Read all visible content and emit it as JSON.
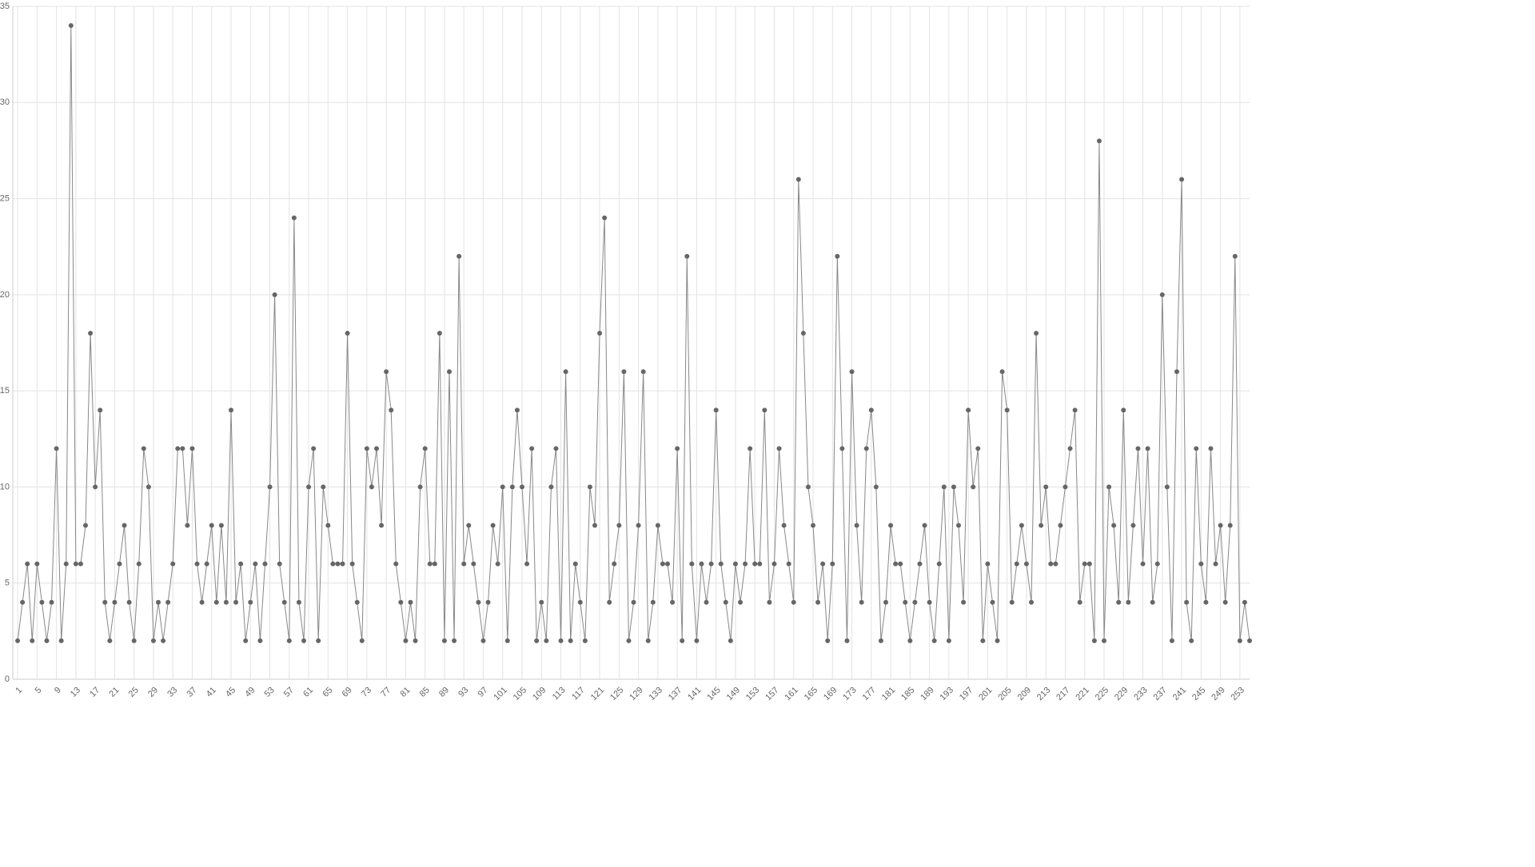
{
  "chart_data": {
    "type": "line",
    "x": [
      1,
      2,
      3,
      4,
      5,
      6,
      7,
      8,
      9,
      10,
      11,
      12,
      13,
      14,
      15,
      16,
      17,
      18,
      19,
      20,
      21,
      22,
      23,
      24,
      25,
      26,
      27,
      28,
      29,
      30,
      31,
      32,
      33,
      34,
      35,
      36,
      37,
      38,
      39,
      40,
      41,
      42,
      43,
      44,
      45,
      46,
      47,
      48,
      49,
      50,
      51,
      52,
      53,
      54,
      55,
      56,
      57,
      58,
      59,
      60,
      61,
      62,
      63,
      64,
      65,
      66,
      67,
      68,
      69,
      70,
      71,
      72,
      73,
      74,
      75,
      76,
      77,
      78,
      79,
      80,
      81,
      82,
      83,
      84,
      85,
      86,
      87,
      88,
      89,
      90,
      91,
      92,
      93,
      94,
      95,
      96,
      97,
      98,
      99,
      100,
      101,
      102,
      103,
      104,
      105,
      106,
      107,
      108,
      109,
      110,
      111,
      112,
      113,
      114,
      115,
      116,
      117,
      118,
      119,
      120,
      121,
      122,
      123,
      124,
      125,
      126,
      127,
      128,
      129,
      130,
      131,
      132,
      133,
      134,
      135,
      136,
      137,
      138,
      139,
      140,
      141,
      142,
      143,
      144,
      145,
      146,
      147,
      148,
      149,
      150,
      151,
      152,
      153,
      154,
      155,
      156,
      157,
      158,
      159,
      160,
      161,
      162,
      163,
      164,
      165,
      166,
      167,
      168,
      169,
      170,
      171,
      172,
      173,
      174,
      175,
      176,
      177,
      178,
      179,
      180,
      181,
      182,
      183,
      184,
      185,
      186,
      187,
      188,
      189,
      190,
      191,
      192,
      193,
      194,
      195,
      196,
      197,
      198,
      199,
      200,
      201,
      202,
      203,
      204,
      205,
      206,
      207,
      208,
      209,
      210,
      211,
      212,
      213,
      214,
      215,
      216,
      217,
      218,
      219,
      220,
      221,
      222,
      223,
      224,
      225,
      226,
      227,
      228,
      229,
      230,
      231,
      232,
      233,
      234,
      235,
      236,
      237,
      238,
      239,
      240,
      241,
      242,
      243,
      244,
      245,
      246,
      247,
      248,
      249,
      250,
      251,
      252,
      253,
      254,
      255
    ],
    "series": [
      {
        "color": "#666666",
        "values": [
          2,
          4,
          6,
          2,
          6,
          4,
          2,
          4,
          12,
          2,
          6,
          34,
          6,
          6,
          8,
          18,
          10,
          14,
          4,
          2,
          4,
          6,
          8,
          4,
          2,
          6,
          12,
          10,
          2,
          4,
          2,
          4,
          6,
          12,
          12,
          8,
          12,
          6,
          4,
          6,
          8,
          4,
          8,
          4,
          14,
          4,
          6,
          2,
          4,
          6,
          2,
          6,
          10,
          20,
          6,
          4,
          2,
          24,
          4,
          2,
          10,
          12,
          2,
          10,
          8,
          6,
          6,
          6,
          18,
          6,
          4,
          2,
          12,
          10,
          12,
          8,
          16,
          14,
          6,
          4,
          2,
          4,
          2,
          10,
          12,
          6,
          6,
          18,
          2,
          16,
          2,
          22,
          6,
          8,
          6,
          4,
          2,
          4,
          8,
          6,
          10,
          2,
          10,
          14,
          10,
          6,
          12,
          2,
          4,
          2,
          10,
          12,
          2,
          16,
          2,
          6,
          4,
          2,
          10,
          8,
          18,
          24,
          4,
          6,
          8,
          16,
          2,
          4,
          8,
          16,
          2,
          4,
          8,
          6,
          6,
          4,
          12,
          2,
          22,
          6,
          2,
          6,
          4,
          6,
          14,
          6,
          4,
          2,
          6,
          4,
          6,
          12,
          6,
          6,
          14,
          4,
          6,
          12,
          8,
          6,
          4,
          26,
          18,
          10,
          8,
          4,
          6,
          2,
          6,
          22,
          12,
          2,
          16,
          8,
          4,
          12,
          14,
          10,
          2,
          4,
          8,
          6,
          6,
          4,
          2,
          4,
          6,
          8,
          4,
          2,
          6,
          10,
          2,
          10,
          8,
          4,
          14,
          10,
          12,
          2,
          6,
          4,
          2,
          16,
          14,
          4,
          6,
          8,
          6,
          4,
          18,
          8,
          10,
          6,
          6,
          8,
          10,
          12,
          14,
          4,
          6,
          6,
          2,
          28,
          2,
          10,
          8,
          4,
          14,
          4,
          8,
          12,
          6,
          12,
          4,
          6,
          20,
          10,
          2,
          16,
          26,
          4,
          2,
          12,
          6,
          4,
          12,
          6,
          8,
          4,
          8,
          22,
          2,
          4,
          2
        ]
      }
    ],
    "xlim": [
      0,
      255
    ],
    "xticks": [
      1,
      5,
      9,
      13,
      17,
      21,
      25,
      29,
      33,
      37,
      41,
      45,
      49,
      53,
      57,
      61,
      65,
      69,
      73,
      77,
      81,
      85,
      89,
      93,
      97,
      101,
      105,
      109,
      113,
      117,
      121,
      125,
      129,
      133,
      137,
      141,
      145,
      149,
      153,
      157,
      161,
      165,
      169,
      173,
      177,
      181,
      185,
      189,
      193,
      197,
      201,
      205,
      209,
      213,
      217,
      221,
      225,
      229,
      233,
      237,
      241,
      245,
      249,
      253
    ],
    "ylim": [
      0,
      35
    ],
    "yticks": [
      0,
      5,
      10,
      15,
      20,
      25,
      30,
      35
    ],
    "grid": true
  }
}
